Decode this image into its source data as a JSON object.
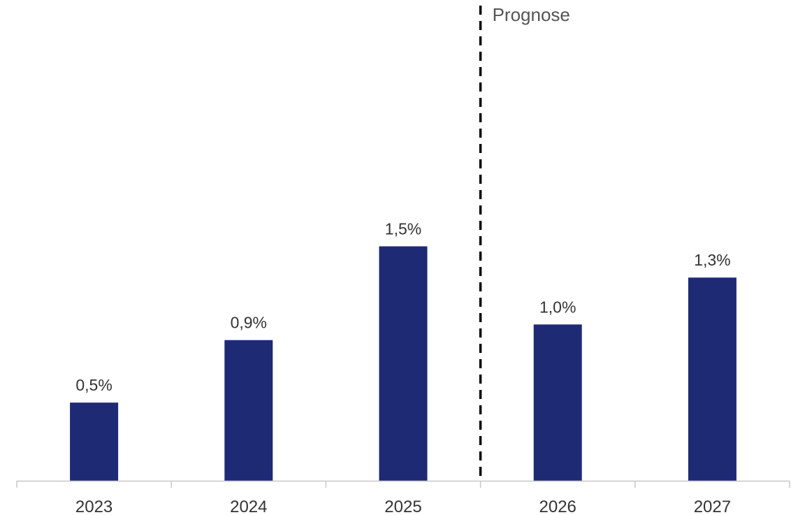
{
  "chart_data": {
    "type": "bar",
    "categories": [
      "2023",
      "2024",
      "2025",
      "2026",
      "2027"
    ],
    "values": [
      0.5,
      0.9,
      1.5,
      1.0,
      1.3
    ],
    "value_labels": [
      "0,5%",
      "0,9%",
      "1,5%",
      "1,0%",
      "1,3%"
    ],
    "annotation": {
      "text": "Prognose",
      "between_categories": [
        "2025",
        "2026"
      ],
      "line_style": "dashed"
    },
    "ylim": [
      0,
      3.0
    ],
    "grid": false,
    "legend": "none",
    "colors": {
      "bar": "#1f2a74",
      "axis": "#c8c8c8",
      "divider": "#000000"
    }
  }
}
